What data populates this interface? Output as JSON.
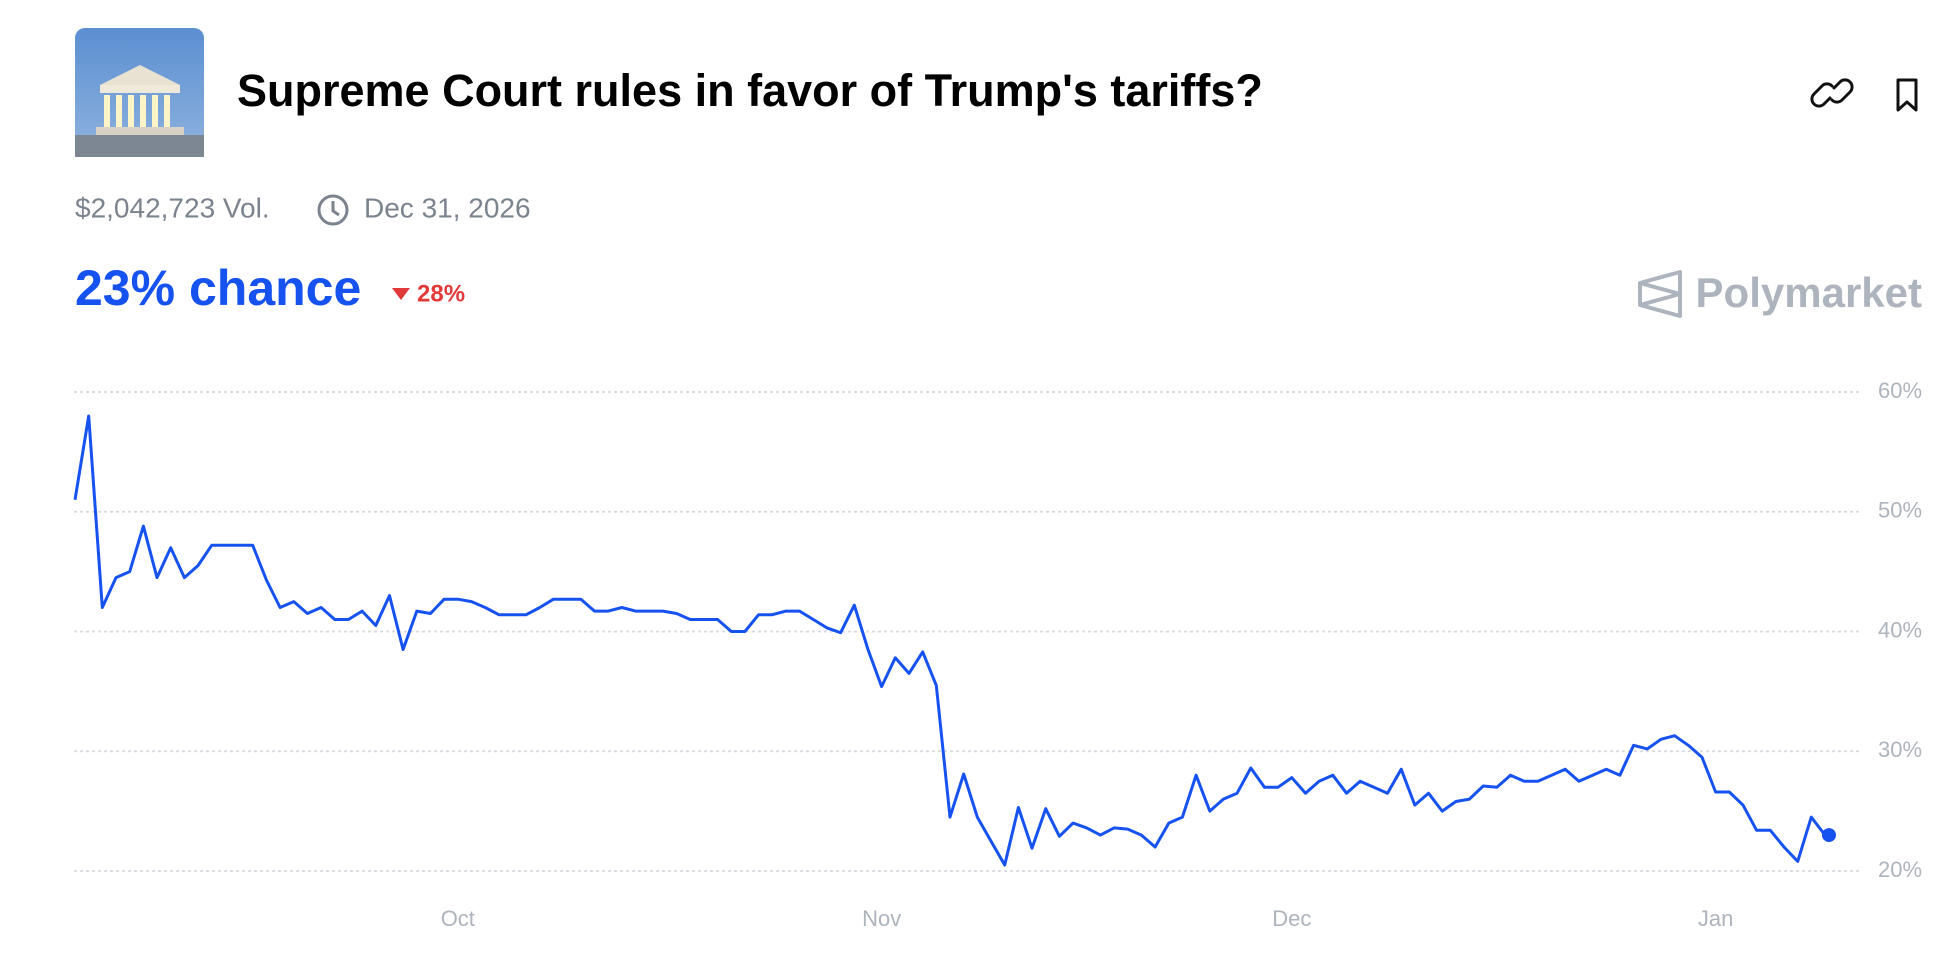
{
  "header": {
    "title": "Supreme Court rules in favor of Trump's tariffs?",
    "volume": "$2,042,723 Vol.",
    "end_date": "Dec 31, 2026",
    "chance": "23% chance",
    "change": "28%",
    "brand": "Polymarket"
  },
  "chart_data": {
    "type": "line",
    "color": "#1652f0",
    "grid": true,
    "categories": [
      null,
      null,
      null,
      null,
      null,
      null,
      null,
      null,
      null,
      null,
      null,
      null,
      null,
      null,
      null,
      null,
      null,
      null,
      null,
      null,
      null,
      null,
      null,
      null,
      null,
      null,
      null,
      null,
      "Oct",
      null,
      null,
      null,
      null,
      null,
      null,
      null,
      null,
      null,
      null,
      null,
      null,
      null,
      null,
      null,
      null,
      null,
      null,
      null,
      null,
      null,
      null,
      null,
      null,
      null,
      null,
      null,
      null,
      null,
      null,
      "Nov",
      null,
      null,
      null,
      null,
      null,
      null,
      null,
      null,
      null,
      null,
      null,
      null,
      null,
      null,
      null,
      null,
      null,
      null,
      null,
      null,
      null,
      null,
      null,
      null,
      null,
      null,
      null,
      null,
      null,
      "Dec",
      null,
      null,
      null,
      null,
      null,
      null,
      null,
      null,
      null,
      null,
      null,
      null,
      null,
      null,
      null,
      null,
      null,
      null,
      null,
      null,
      null,
      null,
      null,
      null,
      null,
      null,
      null,
      null,
      null,
      null,
      "Jan",
      null,
      null,
      null,
      null,
      null,
      null,
      null,
      null
    ],
    "values": [
      51,
      58,
      42,
      44.5,
      45,
      48.8,
      44.5,
      47,
      44.5,
      45.5,
      47.2,
      47.2,
      47.2,
      47.2,
      44.3,
      42,
      42.5,
      41.5,
      42,
      41,
      41,
      41.7,
      40.5,
      43,
      38.5,
      41.7,
      41.5,
      42.7,
      42.7,
      42.5,
      42,
      41.4,
      41.4,
      41.4,
      42,
      42.7,
      42.7,
      42.7,
      41.7,
      41.7,
      42,
      41.7,
      41.7,
      41.7,
      41.5,
      41,
      41,
      41,
      40,
      40,
      41.4,
      41.4,
      41.7,
      41.7,
      41,
      40.3,
      39.9,
      42.2,
      38.5,
      35.4,
      37.8,
      36.5,
      38.3,
      35.5,
      24.5,
      28.1,
      24.5,
      22.5,
      20.5,
      25.3,
      21.9,
      25.2,
      22.9,
      24,
      23.6,
      23,
      23.6,
      23.5,
      23,
      22,
      24,
      24.5,
      28,
      25,
      26,
      26.5,
      28.6,
      27,
      27,
      27.8,
      26.5,
      27.5,
      28,
      26.5,
      27.5,
      27,
      26.5,
      28.5,
      25.5,
      26.5,
      25,
      25.8,
      26,
      27.1,
      27,
      28,
      27.5,
      27.5,
      28,
      28.5,
      27.5,
      28,
      28.5,
      28,
      30.5,
      30.2,
      31,
      31.3,
      30.5,
      29.5,
      26.6,
      26.6,
      25.5,
      23.4,
      23.4,
      22,
      20.8,
      24.5,
      23
    ],
    "ylim": [
      20,
      60
    ],
    "yticks": [
      {
        "value": 20,
        "label": "20%"
      },
      {
        "value": 30,
        "label": "30%"
      },
      {
        "value": 40,
        "label": "40%"
      },
      {
        "value": 50,
        "label": "50%"
      },
      {
        "value": 60,
        "label": "60%"
      }
    ]
  }
}
